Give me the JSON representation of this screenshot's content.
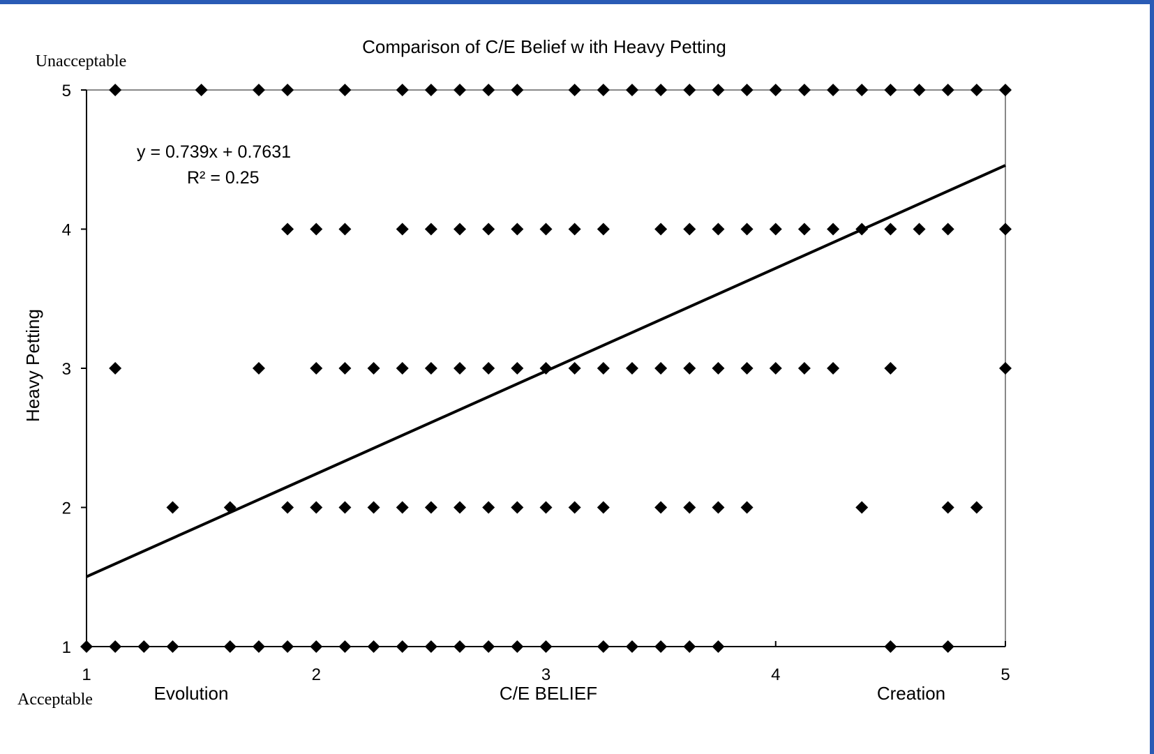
{
  "chart_data": {
    "type": "scatter",
    "title": "Comparison of C/E Belief w ith Heavy Petting",
    "xlabel": "C/E BELIEF",
    "ylabel": "Heavy Petting",
    "xlim": [
      1,
      5
    ],
    "ylim": [
      1,
      5
    ],
    "x_ticks": [
      "1",
      "2",
      "3",
      "4",
      "5"
    ],
    "y_ticks": [
      "1",
      "2",
      "3",
      "4",
      "5"
    ],
    "y_high_label": "Unacceptable",
    "y_low_label": "Acceptable",
    "x_low_label": "Evolution",
    "x_high_label": "Creation",
    "equation": "y = 0.739x + 0.7631",
    "r_squared": "R² = 0.25",
    "trendline": {
      "slope": 0.739,
      "intercept": 0.7631
    },
    "marker_color": "#000000",
    "grid": false,
    "series": [
      {
        "points": [
          [
            1.125,
            5
          ],
          [
            1.5,
            5
          ],
          [
            1.75,
            5
          ],
          [
            1.875,
            5
          ],
          [
            2.125,
            5
          ],
          [
            2.375,
            5
          ],
          [
            2.5,
            5
          ],
          [
            2.625,
            5
          ],
          [
            2.75,
            5
          ],
          [
            2.875,
            5
          ],
          [
            3.125,
            5
          ],
          [
            3.25,
            5
          ],
          [
            3.375,
            5
          ],
          [
            3.5,
            5
          ],
          [
            3.625,
            5
          ],
          [
            3.75,
            5
          ],
          [
            3.875,
            5
          ],
          [
            4,
            5
          ],
          [
            4.125,
            5
          ],
          [
            4.25,
            5
          ],
          [
            4.375,
            5
          ],
          [
            4.5,
            5
          ],
          [
            4.625,
            5
          ],
          [
            4.75,
            5
          ],
          [
            4.875,
            5
          ],
          [
            5,
            5
          ],
          [
            1.875,
            4
          ],
          [
            2,
            4
          ],
          [
            2.125,
            4
          ],
          [
            2.375,
            4
          ],
          [
            2.5,
            4
          ],
          [
            2.625,
            4
          ],
          [
            2.75,
            4
          ],
          [
            2.875,
            4
          ],
          [
            3,
            4
          ],
          [
            3.125,
            4
          ],
          [
            3.25,
            4
          ],
          [
            3.5,
            4
          ],
          [
            3.625,
            4
          ],
          [
            3.75,
            4
          ],
          [
            3.875,
            4
          ],
          [
            4,
            4
          ],
          [
            4.125,
            4
          ],
          [
            4.25,
            4
          ],
          [
            4.375,
            4
          ],
          [
            4.5,
            4
          ],
          [
            4.625,
            4
          ],
          [
            4.75,
            4
          ],
          [
            5,
            4
          ],
          [
            1.125,
            3
          ],
          [
            1.75,
            3
          ],
          [
            2,
            3
          ],
          [
            2.125,
            3
          ],
          [
            2.25,
            3
          ],
          [
            2.375,
            3
          ],
          [
            2.5,
            3
          ],
          [
            2.625,
            3
          ],
          [
            2.75,
            3
          ],
          [
            2.875,
            3
          ],
          [
            3,
            3
          ],
          [
            3.125,
            3
          ],
          [
            3.25,
            3
          ],
          [
            3.375,
            3
          ],
          [
            3.5,
            3
          ],
          [
            3.625,
            3
          ],
          [
            3.75,
            3
          ],
          [
            3.875,
            3
          ],
          [
            4,
            3
          ],
          [
            4.125,
            3
          ],
          [
            4.25,
            3
          ],
          [
            4.5,
            3
          ],
          [
            5,
            3
          ],
          [
            1.375,
            2
          ],
          [
            1.625,
            2
          ],
          [
            1.875,
            2
          ],
          [
            2,
            2
          ],
          [
            2.125,
            2
          ],
          [
            2.25,
            2
          ],
          [
            2.375,
            2
          ],
          [
            2.5,
            2
          ],
          [
            2.625,
            2
          ],
          [
            2.75,
            2
          ],
          [
            2.875,
            2
          ],
          [
            3,
            2
          ],
          [
            3.125,
            2
          ],
          [
            3.25,
            2
          ],
          [
            3.5,
            2
          ],
          [
            3.625,
            2
          ],
          [
            3.75,
            2
          ],
          [
            3.875,
            2
          ],
          [
            4.375,
            2
          ],
          [
            4.75,
            2
          ],
          [
            4.875,
            2
          ],
          [
            1,
            1
          ],
          [
            1.125,
            1
          ],
          [
            1.25,
            1
          ],
          [
            1.375,
            1
          ],
          [
            1.625,
            1
          ],
          [
            1.75,
            1
          ],
          [
            1.875,
            1
          ],
          [
            2,
            1
          ],
          [
            2.125,
            1
          ],
          [
            2.25,
            1
          ],
          [
            2.375,
            1
          ],
          [
            2.5,
            1
          ],
          [
            2.625,
            1
          ],
          [
            2.75,
            1
          ],
          [
            2.875,
            1
          ],
          [
            3,
            1
          ],
          [
            3.25,
            1
          ],
          [
            3.375,
            1
          ],
          [
            3.5,
            1
          ],
          [
            3.625,
            1
          ],
          [
            3.75,
            1
          ],
          [
            4.5,
            1
          ],
          [
            4.75,
            1
          ]
        ]
      }
    ]
  }
}
